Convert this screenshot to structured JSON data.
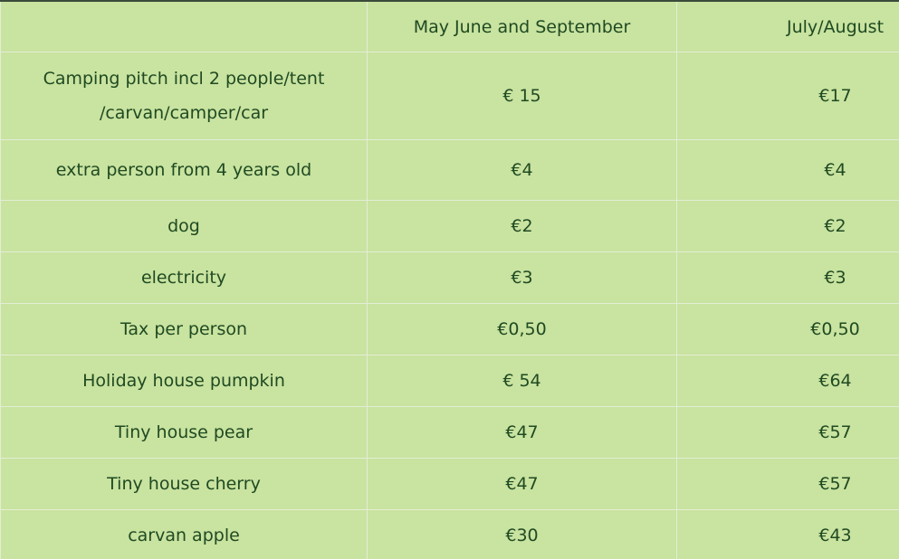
{
  "table": {
    "header": [
      "May June and September",
      "July/August"
    ],
    "rows": [
      [
        [
          "Camping pitch incl 2 people/tent",
          "/carvan/camper/car"
        ],
        "€ 15",
        "€17"
      ],
      [
        "extra person from 4 years old",
        "€4",
        "€4"
      ],
      [
        "dog",
        "€2",
        "€2"
      ],
      [
        "electricity",
        "€3",
        "€3"
      ],
      [
        "Tax per person",
        "€0,50",
        "€0,50"
      ],
      [
        "Holiday house pumpkin",
        "€ 54",
        "€64"
      ],
      [
        "Tiny house pear",
        "€47",
        "€57"
      ],
      [
        "Tiny house cherry",
        "€47",
        "€57"
      ],
      [
        "carvan apple",
        "€30",
        "€43"
      ]
    ]
  }
}
